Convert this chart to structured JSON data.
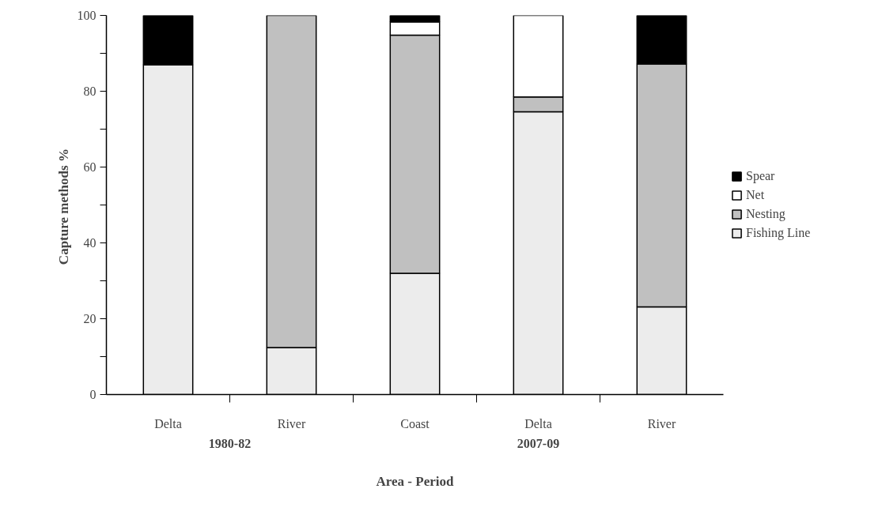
{
  "chart_data": {
    "type": "bar",
    "stacked": true,
    "xlabel": "Area - Period",
    "ylabel": "Capture  methods %",
    "categories": [
      "Delta",
      "River",
      "Coast",
      "Delta",
      "River"
    ],
    "annotations": [
      "1980-82",
      "2007-09"
    ],
    "series": [
      {
        "name": "Fishing Line",
        "color": "#ececec",
        "values": [
          87,
          12.4,
          32,
          74.6,
          23.1
        ]
      },
      {
        "name": "Nesting",
        "color": "#c0c0c0",
        "values": [
          null,
          87.6,
          62.8,
          3.9,
          64.1
        ]
      },
      {
        "name": "Net",
        "color": "#ffffff",
        "values": [
          null,
          null,
          3.5,
          21.5,
          null
        ]
      },
      {
        "name": "Spear",
        "color": "#000000",
        "values": [
          13,
          null,
          1.7,
          null,
          12.8
        ]
      }
    ],
    "ylim": [
      0,
      100
    ],
    "yticks": [
      0,
      {
        "value": 10,
        "label": null
      },
      20,
      {
        "value": 30,
        "label": null
      },
      40,
      {
        "value": 50,
        "label": null
      },
      60,
      {
        "value": 70,
        "label": null
      },
      80,
      {
        "value": 90,
        "label": null
      },
      100
    ],
    "legend": "right",
    "grid": false
  }
}
